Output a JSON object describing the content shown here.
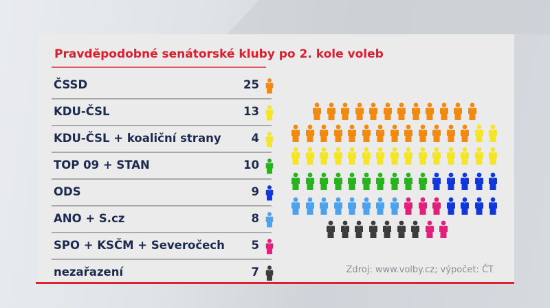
{
  "chart_data": {
    "type": "table",
    "title": "Pravděpodobné senátorské kluby po 2. kole voleb",
    "categories": [
      "ČSSD",
      "KDU-ČSL",
      "KDU-ČSL + koaliční strany",
      "TOP 09 + STAN",
      "ODS",
      "ANO + S.cz",
      "SPO + KSČM + Severočech",
      "nezařazení"
    ],
    "values": [
      25,
      13,
      4,
      10,
      9,
      8,
      5,
      7
    ],
    "colors": [
      "#f08a12",
      "#f4e42a",
      "#f4e42a",
      "#27b21e",
      "#1237d8",
      "#4ea2ec",
      "#e0207a",
      "#3c3c3c"
    ],
    "total": 81,
    "seat_rows": [
      [
        {
          "c": 0,
          "n": 12
        }
      ],
      [
        {
          "c": 0,
          "n": 13
        },
        {
          "c": 1,
          "n": 2
        }
      ],
      [
        {
          "c": 1,
          "n": 15
        }
      ],
      [
        {
          "c": 3,
          "n": 10
        },
        {
          "c": 4,
          "n": 5
        }
      ],
      [
        {
          "c": 5,
          "n": 8
        },
        {
          "c": 6,
          "n": 3
        },
        {
          "c": 4,
          "n": 4
        }
      ],
      [
        {
          "c": 7,
          "n": 7
        },
        {
          "c": 6,
          "n": 2
        }
      ]
    ],
    "source": "Zdroj: www.volby.cz; výpočet: ČT"
  },
  "header": {
    "title": "Pravděpodobné senátorské kluby po 2. kole voleb"
  },
  "rows": [
    {
      "label": "ČSSD",
      "count": "25",
      "icon": "person-icon",
      "color": "#f08a12"
    },
    {
      "label": "KDU-ČSL",
      "count": "13",
      "icon": "person-icon",
      "color": "#f4e42a"
    },
    {
      "label": "KDU-ČSL + koaliční strany",
      "count": "4",
      "icon": "person-icon",
      "color": "#f4e42a"
    },
    {
      "label": "TOP 09 + STAN",
      "count": "10",
      "icon": "person-icon",
      "color": "#27b21e"
    },
    {
      "label": "ODS",
      "count": "9",
      "icon": "person-icon",
      "color": "#1237d8"
    },
    {
      "label": "ANO + S.cz",
      "count": "8",
      "icon": "person-icon",
      "color": "#4ea2ec"
    },
    {
      "label": "SPO + KSČM + Severočech",
      "count": "5",
      "icon": "person-icon",
      "color": "#e0207a"
    },
    {
      "label": "nezařazení",
      "count": "7",
      "icon": "person-icon",
      "color": "#3c3c3c"
    }
  ],
  "footer": {
    "source": "Zdroj: www.volby.cz; výpočet: ČT"
  }
}
